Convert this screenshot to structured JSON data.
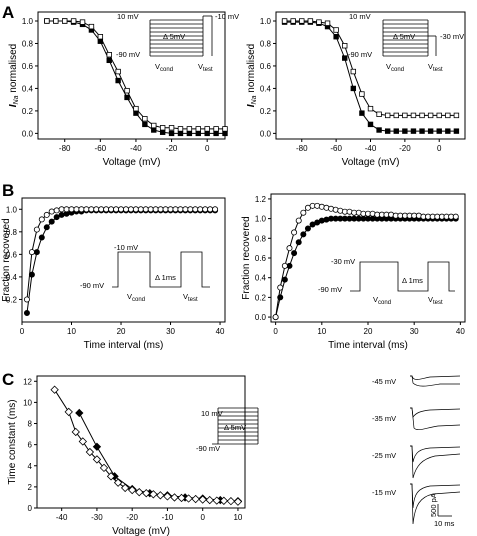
{
  "panel_labels": [
    "A",
    "B",
    "C"
  ],
  "protocols": {
    "A1": {
      "hold": "-90 mV",
      "top": "10 mV",
      "test": "-10 mV",
      "step": "Δ 5mV",
      "cond": "V",
      "cond_sub": "cond",
      "testv": "V",
      "testv_sub": "test"
    },
    "A2": {
      "hold": "-90 mV",
      "top": "10 mV",
      "test": "-30 mV",
      "step": "Δ 5mV",
      "cond": "V",
      "cond_sub": "cond",
      "testv": "V",
      "testv_sub": "test"
    },
    "B1": {
      "hold": "-90 mV",
      "pulse": "-10 mV",
      "step": "Δ 1ms",
      "cond": "V",
      "cond_sub": "cond",
      "testv": "V",
      "testv_sub": "test"
    },
    "B2": {
      "hold": "-90 mV",
      "pulse": "-30 mV",
      "step": "Δ 1ms",
      "cond": "V",
      "cond_sub": "cond",
      "testv": "V",
      "testv_sub": "test"
    },
    "C": {
      "hold": "-90 mV",
      "top": "10 mV",
      "step": "Δ 5mV"
    }
  },
  "traces": {
    "labels": [
      "-45 mV",
      "-35 mV",
      "-25 mV",
      "-15 mV"
    ],
    "scale_y": "500 pA",
    "scale_x": "10 ms"
  },
  "chart_data": [
    {
      "id": "A1",
      "type": "scatter",
      "xlabel": "Voltage (mV)",
      "ylabel": "I",
      "ylabel_sub": "Na",
      "ylabel_rest": " normalised",
      "xlim": [
        -95,
        10
      ],
      "ylim": [
        -0.05,
        1.08
      ],
      "xticks": [
        "-80",
        "-60",
        "-40",
        "-20",
        "0"
      ],
      "xtick_vals": [
        -80,
        -60,
        -40,
        -20,
        0
      ],
      "yticks": [
        "0.0",
        "0.2",
        "0.4",
        "0.6",
        "0.8",
        "1.0"
      ],
      "ytick_vals": [
        0,
        0.2,
        0.4,
        0.6,
        0.8,
        1.0
      ],
      "series": [
        {
          "marker": "square-filled",
          "x": [
            -90,
            -85,
            -80,
            -75,
            -70,
            -65,
            -60,
            -55,
            -50,
            -45,
            -40,
            -35,
            -30,
            -25,
            -20,
            -15,
            -10,
            -5,
            0,
            5,
            10
          ],
          "y": [
            1.0,
            1.0,
            1.0,
            0.99,
            0.97,
            0.92,
            0.82,
            0.65,
            0.47,
            0.32,
            0.18,
            0.08,
            0.03,
            0.01,
            0.0,
            0.0,
            0.0,
            0.0,
            0.0,
            0.0,
            0.0
          ]
        },
        {
          "marker": "square-open",
          "x": [
            -90,
            -85,
            -80,
            -75,
            -70,
            -65,
            -60,
            -55,
            -50,
            -45,
            -40,
            -35,
            -30,
            -25,
            -20,
            -15,
            -10,
            -5,
            0,
            5,
            10
          ],
          "y": [
            1.0,
            1.0,
            1.0,
            1.0,
            0.99,
            0.95,
            0.86,
            0.7,
            0.55,
            0.38,
            0.22,
            0.13,
            0.07,
            0.05,
            0.05,
            0.04,
            0.04,
            0.04,
            0.04,
            0.04,
            0.04
          ]
        }
      ]
    },
    {
      "id": "A2",
      "type": "scatter",
      "xlabel": "Voltage (mV)",
      "ylabel": "I",
      "ylabel_sub": "Na",
      "ylabel_rest": " normalised",
      "xlim": [
        -95,
        15
      ],
      "ylim": [
        -0.05,
        1.08
      ],
      "xticks": [
        "-80",
        "-60",
        "-40",
        "-20",
        "0"
      ],
      "xtick_vals": [
        -80,
        -60,
        -40,
        -20,
        0
      ],
      "yticks": [
        "0.0",
        "0.2",
        "0.4",
        "0.6",
        "0.8",
        "1.0"
      ],
      "ytick_vals": [
        0,
        0.2,
        0.4,
        0.6,
        0.8,
        1.0
      ],
      "series": [
        {
          "marker": "square-filled",
          "x": [
            -90,
            -85,
            -80,
            -75,
            -70,
            -65,
            -60,
            -55,
            -50,
            -45,
            -40,
            -35,
            -30,
            -25,
            -20,
            -15,
            -10,
            -5,
            0,
            5,
            10
          ],
          "y": [
            0.99,
            0.99,
            0.99,
            0.99,
            0.98,
            0.95,
            0.86,
            0.67,
            0.4,
            0.18,
            0.08,
            0.03,
            0.02,
            0.02,
            0.02,
            0.02,
            0.02,
            0.02,
            0.02,
            0.02,
            0.02
          ]
        },
        {
          "marker": "square-open",
          "x": [
            -90,
            -85,
            -80,
            -75,
            -70,
            -65,
            -60,
            -55,
            -50,
            -45,
            -40,
            -35,
            -30,
            -25,
            -20,
            -15,
            -10,
            -5,
            0,
            5,
            10
          ],
          "y": [
            1.0,
            1.0,
            1.0,
            1.0,
            0.99,
            0.98,
            0.92,
            0.78,
            0.55,
            0.35,
            0.22,
            0.17,
            0.16,
            0.16,
            0.16,
            0.16,
            0.16,
            0.16,
            0.16,
            0.16,
            0.16
          ]
        }
      ]
    },
    {
      "id": "B1",
      "type": "scatter",
      "xlabel": "Time interval (ms)",
      "ylabel": "Fraction recovered",
      "xlim": [
        0,
        41
      ],
      "ylim": [
        0,
        1.1
      ],
      "xticks": [
        "0",
        "10",
        "20",
        "30",
        "40"
      ],
      "xtick_vals": [
        0,
        10,
        20,
        30,
        40
      ],
      "yticks": [
        "0.2",
        "0.4",
        "0.6",
        "0.8",
        "1.0"
      ],
      "ytick_vals": [
        0.2,
        0.4,
        0.6,
        0.8,
        1.0
      ],
      "series": [
        {
          "marker": "circle-filled",
          "x": [
            1,
            2,
            3,
            4,
            5,
            6,
            7,
            8,
            9,
            10,
            11,
            12,
            13,
            14,
            15,
            16,
            17,
            18,
            19,
            20,
            21,
            22,
            23,
            24,
            25,
            26,
            27,
            28,
            29,
            30,
            31,
            32,
            33,
            34,
            35,
            36,
            37,
            38,
            39
          ],
          "y": [
            0.08,
            0.42,
            0.62,
            0.75,
            0.84,
            0.89,
            0.93,
            0.95,
            0.96,
            0.97,
            0.98,
            0.98,
            0.99,
            0.99,
            0.99,
            0.99,
            0.99,
            0.99,
            0.99,
            0.99,
            0.99,
            0.99,
            0.99,
            0.99,
            0.99,
            0.99,
            0.99,
            0.99,
            0.99,
            0.99,
            0.99,
            0.99,
            0.99,
            0.99,
            0.99,
            0.99,
            0.99,
            0.99,
            0.99
          ]
        },
        {
          "marker": "circle-open",
          "x": [
            1,
            2,
            3,
            4,
            5,
            6,
            7,
            8,
            9,
            10,
            11,
            12,
            13,
            14,
            15,
            16,
            17,
            18,
            19,
            20,
            21,
            22,
            23,
            24,
            25,
            26,
            27,
            28,
            29,
            30,
            31,
            32,
            33,
            34,
            35,
            36,
            37,
            38,
            39
          ],
          "y": [
            0.2,
            0.62,
            0.82,
            0.91,
            0.95,
            0.98,
            0.99,
            1.0,
            1.0,
            1.0,
            1.0,
            1.0,
            1.0,
            1.0,
            1.0,
            1.0,
            1.0,
            1.0,
            1.0,
            1.0,
            1.0,
            1.0,
            1.0,
            1.0,
            1.0,
            1.0,
            1.0,
            1.0,
            1.0,
            1.0,
            1.0,
            1.0,
            1.0,
            1.0,
            1.0,
            1.0,
            1.0,
            1.0,
            1.0
          ]
        }
      ]
    },
    {
      "id": "B2",
      "type": "scatter",
      "xlabel": "Time interval (ms)",
      "ylabel": "Fraction recovered",
      "xlim": [
        -1,
        41
      ],
      "ylim": [
        -0.05,
        1.25
      ],
      "xticks": [
        "0",
        "10",
        "20",
        "30",
        "40"
      ],
      "xtick_vals": [
        0,
        10,
        20,
        30,
        40
      ],
      "yticks": [
        "0.0",
        "0.2",
        "0.4",
        "0.6",
        "0.8",
        "1.0",
        "1.2"
      ],
      "ytick_vals": [
        0,
        0.2,
        0.4,
        0.6,
        0.8,
        1.0,
        1.2
      ],
      "series": [
        {
          "marker": "circle-filled",
          "x": [
            0,
            1,
            2,
            3,
            4,
            5,
            6,
            7,
            8,
            9,
            10,
            11,
            12,
            13,
            14,
            15,
            16,
            17,
            18,
            19,
            20,
            21,
            22,
            23,
            24,
            25,
            26,
            27,
            28,
            29,
            30,
            31,
            32,
            33,
            34,
            35,
            36,
            37,
            38,
            39
          ],
          "y": [
            0.0,
            0.2,
            0.38,
            0.52,
            0.65,
            0.76,
            0.84,
            0.9,
            0.94,
            0.96,
            0.98,
            0.99,
            1.0,
            1.0,
            1.0,
            1.0,
            1.0,
            1.0,
            1.0,
            1.0,
            1.0,
            1.0,
            1.0,
            1.0,
            1.0,
            1.0,
            1.0,
            1.0,
            1.0,
            1.0,
            1.0,
            1.0,
            1.0,
            1.0,
            1.0,
            1.0,
            1.0,
            1.0,
            1.0,
            1.0
          ]
        },
        {
          "marker": "circle-open",
          "x": [
            0,
            1,
            2,
            3,
            4,
            5,
            6,
            7,
            8,
            9,
            10,
            11,
            12,
            13,
            14,
            15,
            16,
            17,
            18,
            19,
            20,
            21,
            22,
            23,
            24,
            25,
            26,
            27,
            28,
            29,
            30,
            31,
            32,
            33,
            34,
            35,
            36,
            37,
            38,
            39
          ],
          "y": [
            0.0,
            0.3,
            0.52,
            0.7,
            0.86,
            0.98,
            1.06,
            1.11,
            1.13,
            1.13,
            1.12,
            1.11,
            1.1,
            1.09,
            1.08,
            1.07,
            1.07,
            1.06,
            1.06,
            1.05,
            1.05,
            1.05,
            1.04,
            1.04,
            1.04,
            1.04,
            1.03,
            1.03,
            1.03,
            1.03,
            1.03,
            1.03,
            1.02,
            1.02,
            1.02,
            1.02,
            1.02,
            1.02,
            1.02,
            1.02
          ]
        }
      ]
    },
    {
      "id": "C",
      "type": "scatter",
      "xlabel": "Voltage (mV)",
      "ylabel": "Time constant (ms)",
      "xlim": [
        -47,
        12
      ],
      "ylim": [
        0,
        12.5
      ],
      "xticks": [
        "-40",
        "-30",
        "-20",
        "-10",
        "0",
        "10"
      ],
      "xtick_vals": [
        -40,
        -30,
        -20,
        -10,
        0,
        10
      ],
      "yticks": [
        "0",
        "2",
        "4",
        "6",
        "8",
        "10",
        "12"
      ],
      "ytick_vals": [
        0,
        2,
        4,
        6,
        8,
        10,
        12
      ],
      "series": [
        {
          "marker": "diamond-filled",
          "x": [
            -35,
            -30,
            -25,
            -20,
            -15,
            -10,
            -5,
            0,
            5,
            10
          ],
          "y": [
            9.0,
            5.8,
            3.0,
            1.8,
            1.4,
            1.2,
            1.0,
            0.9,
            0.75,
            0.65
          ]
        },
        {
          "marker": "diamond-open",
          "x": [
            -42,
            -38,
            -36,
            -34,
            -32,
            -30,
            -28,
            -26,
            -24,
            -22,
            -20,
            -18,
            -16,
            -14,
            -12,
            -10,
            -8,
            -6,
            -4,
            -2,
            0,
            2,
            4,
            6,
            8,
            10
          ],
          "y": [
            11.2,
            9.1,
            7.2,
            6.3,
            5.3,
            4.6,
            3.8,
            3.0,
            2.4,
            1.9,
            1.7,
            1.5,
            1.4,
            1.3,
            1.2,
            1.1,
            1.0,
            0.95,
            0.9,
            0.85,
            0.8,
            0.75,
            0.7,
            0.68,
            0.65,
            0.6
          ]
        }
      ]
    }
  ]
}
